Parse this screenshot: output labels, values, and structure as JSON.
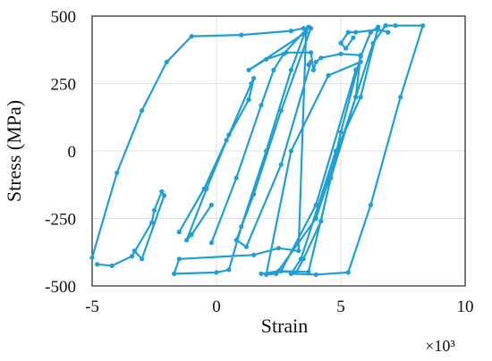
{
  "chart_data": {
    "type": "line",
    "title": "",
    "xlabel": "Strain",
    "ylabel": "Stress (MPa)",
    "x_multiplier_label": "×10³",
    "xlim": [
      -5,
      10
    ],
    "ylim": [
      -500,
      500
    ],
    "x_ticks": [
      "-5",
      "0",
      "5",
      "10"
    ],
    "y_ticks": [
      "500",
      "250",
      "0",
      "-250",
      "-500"
    ],
    "grid": true,
    "legend": "none",
    "series_color": "#1f9fd4",
    "series": [
      {
        "points": [
          [
            -5.0,
            -395
          ],
          [
            -4.0,
            -80
          ],
          [
            -3.0,
            150
          ],
          [
            -2.0,
            330
          ],
          [
            -1.0,
            425
          ],
          [
            1.0,
            430
          ],
          [
            3.0,
            445
          ],
          [
            3.5,
            455
          ],
          [
            3.6,
            450
          ],
          [
            3.0,
            300
          ],
          [
            2.0,
            0
          ],
          [
            1.0,
            -280
          ],
          [
            0.5,
            -440
          ],
          [
            0.0,
            -450
          ],
          [
            -1.7,
            -455
          ],
          [
            -1.5,
            -400
          ],
          [
            1.5,
            -385
          ],
          [
            2.5,
            -360
          ],
          [
            3.3,
            -370
          ],
          [
            3.6,
            440
          ],
          [
            1.3,
            300
          ],
          [
            2.0,
            340
          ],
          [
            2.8,
            365
          ],
          [
            3.8,
            365
          ],
          [
            3.9,
            300
          ],
          [
            4.0,
            330
          ],
          [
            4.2,
            345
          ],
          [
            5.0,
            360
          ],
          [
            5.8,
            355
          ],
          [
            5.6,
            200
          ],
          [
            4.0,
            -250
          ],
          [
            2.4,
            -455
          ],
          [
            2.0,
            -458
          ],
          [
            3.0,
            0
          ],
          [
            4.5,
            280
          ],
          [
            5.8,
            330
          ],
          [
            5.6,
            300
          ],
          [
            4.0,
            -200
          ],
          [
            2.6,
            -445
          ],
          [
            3.7,
            -448
          ],
          [
            4.6,
            -100
          ],
          [
            5.6,
            200
          ],
          [
            6.3,
            400
          ],
          [
            6.8,
            465
          ],
          [
            7.2,
            465
          ],
          [
            8.3,
            465
          ],
          [
            7.4,
            200
          ],
          [
            6.2,
            -200
          ],
          [
            5.3,
            -450
          ],
          [
            4.0,
            -458
          ],
          [
            3.0,
            -455
          ],
          [
            3.4,
            -400
          ],
          [
            4.8,
            0
          ],
          [
            5.8,
            200
          ],
          [
            6.5,
            460
          ],
          [
            6.2,
            440
          ],
          [
            5.8,
            350
          ],
          [
            5.0,
            70
          ],
          [
            4.2,
            -260
          ],
          [
            3.5,
            -400
          ],
          [
            3.2,
            -450
          ],
          [
            2.5,
            -445
          ],
          [
            1.8,
            -455
          ]
        ]
      },
      {
        "points": [
          [
            -4.8,
            -420
          ],
          [
            -4.2,
            -425
          ],
          [
            -3.4,
            -390
          ],
          [
            -2.6,
            -265
          ],
          [
            -2.5,
            -220
          ],
          [
            -2.2,
            -150
          ],
          [
            -2.1,
            -165
          ],
          [
            -3.0,
            -400
          ],
          [
            -3.3,
            -370
          ]
        ]
      },
      {
        "points": [
          [
            -1.5,
            -300
          ],
          [
            -0.5,
            -140
          ],
          [
            0.4,
            40
          ],
          [
            1.3,
            190
          ],
          [
            1.5,
            270
          ],
          [
            1.4,
            250
          ],
          [
            0.5,
            60
          ],
          [
            -0.4,
            -140
          ],
          [
            -1.2,
            -330
          ],
          [
            -1.0,
            -310
          ],
          [
            -0.2,
            -200
          ]
        ]
      },
      {
        "points": [
          [
            -0.2,
            -340
          ],
          [
            0.8,
            -100
          ],
          [
            1.8,
            170
          ],
          [
            2.3,
            300
          ],
          [
            2.7,
            360
          ],
          [
            3.7,
            460
          ],
          [
            3.8,
            455
          ],
          [
            2.6,
            150
          ],
          [
            1.5,
            -160
          ],
          [
            0.8,
            -330
          ],
          [
            1.2,
            -355
          ],
          [
            2.6,
            -50
          ],
          [
            3.8,
            330
          ],
          [
            3.7,
            320
          ]
        ]
      },
      {
        "points": [
          [
            5.5,
            420
          ],
          [
            5.2,
            380
          ],
          [
            5.0,
            400
          ],
          [
            5.3,
            440
          ],
          [
            5.6,
            440
          ],
          [
            6.5,
            450
          ],
          [
            6.9,
            440
          ]
        ]
      }
    ]
  }
}
